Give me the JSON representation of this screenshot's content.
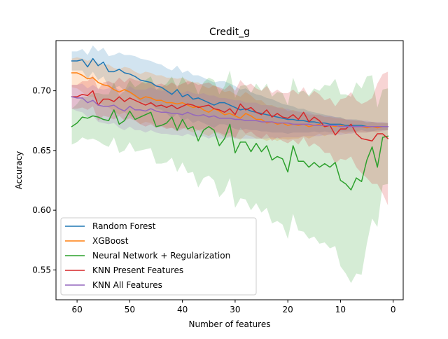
{
  "chart_data": {
    "type": "line",
    "title": "Credit_g",
    "xlabel": "Number of features",
    "ylabel": "Accuracy",
    "x_axis_inverted": true,
    "xlim": [
      64.0,
      -1.9
    ],
    "ylim": [
      0.525,
      0.742
    ],
    "xticks": [
      60,
      50,
      40,
      30,
      20,
      10,
      0
    ],
    "yticks": [
      0.55,
      0.6,
      0.65,
      0.7
    ],
    "ytick_labels": [
      "0.55",
      "0.60",
      "0.65",
      "0.70"
    ],
    "grid": false,
    "legend_position": "lower-left",
    "x": [
      61,
      60,
      59,
      58,
      57,
      56,
      55,
      54,
      53,
      52,
      51,
      50,
      49,
      48,
      47,
      46,
      45,
      44,
      43,
      42,
      41,
      40,
      39,
      38,
      37,
      36,
      35,
      34,
      33,
      32,
      31,
      30,
      29,
      28,
      27,
      26,
      25,
      24,
      23,
      22,
      21,
      20,
      19,
      18,
      17,
      16,
      15,
      14,
      13,
      12,
      11,
      10,
      9,
      8,
      7,
      6,
      5,
      4,
      3,
      2,
      1
    ],
    "series": [
      {
        "name": "Random Forest",
        "color": "#1f77b4",
        "values": [
          0.725,
          0.725,
          0.726,
          0.72,
          0.727,
          0.721,
          0.724,
          0.716,
          0.716,
          0.718,
          0.715,
          0.714,
          0.712,
          0.709,
          0.708,
          0.707,
          0.704,
          0.703,
          0.7,
          0.697,
          0.701,
          0.695,
          0.697,
          0.693,
          0.694,
          0.692,
          0.69,
          0.688,
          0.69,
          0.69,
          0.688,
          0.686,
          0.684,
          0.685,
          0.683,
          0.682,
          0.681,
          0.68,
          0.679,
          0.678,
          0.677,
          0.676,
          0.676,
          0.675,
          0.675,
          0.674,
          0.674,
          0.673,
          0.673,
          0.672,
          0.672,
          0.672,
          0.671,
          0.671,
          0.671,
          0.671,
          0.67,
          0.67,
          0.67,
          0.67,
          0.67
        ],
        "band_half_width": [
          0.008,
          0.008,
          0.009,
          0.01,
          0.011,
          0.012,
          0.012,
          0.013,
          0.014,
          0.014,
          0.015,
          0.016,
          0.017,
          0.018,
          0.018,
          0.018,
          0.019,
          0.019,
          0.019,
          0.02,
          0.02,
          0.02,
          0.02,
          0.02,
          0.019,
          0.019,
          0.019,
          0.019,
          0.018,
          0.018,
          0.018,
          0.018,
          0.017,
          0.017,
          0.016,
          0.015,
          0.015,
          0.014,
          0.014,
          0.013,
          0.012,
          0.012,
          0.011,
          0.01,
          0.01,
          0.009,
          0.008,
          0.008,
          0.007,
          0.007,
          0.006,
          0.006,
          0.005,
          0.005,
          0.005,
          0.004,
          0.004,
          0.004,
          0.003,
          0.003,
          0.003
        ]
      },
      {
        "name": "XGBoost",
        "color": "#ff7f0e",
        "values": [
          0.715,
          0.715,
          0.713,
          0.71,
          0.711,
          0.707,
          0.705,
          0.704,
          0.701,
          0.699,
          0.701,
          0.699,
          0.696,
          0.693,
          0.695,
          0.694,
          0.692,
          0.692,
          0.69,
          0.69,
          0.689,
          0.69,
          0.688,
          0.686,
          0.687,
          0.684,
          0.682,
          0.685,
          0.683,
          0.68,
          0.681,
          0.679,
          0.677,
          0.681,
          0.679,
          0.676,
          0.676,
          0.673,
          0.674,
          0.672,
          0.673,
          0.671,
          0.672,
          0.671,
          0.672,
          0.67,
          0.671,
          0.672,
          0.67,
          0.671,
          0.67,
          0.671,
          0.67,
          0.67,
          0.67,
          0.67,
          0.669,
          0.67,
          0.669,
          0.67,
          0.67
        ],
        "band_half_width": [
          0.012,
          0.013,
          0.014,
          0.015,
          0.016,
          0.016,
          0.017,
          0.018,
          0.018,
          0.019,
          0.019,
          0.02,
          0.02,
          0.021,
          0.021,
          0.021,
          0.021,
          0.021,
          0.021,
          0.021,
          0.021,
          0.021,
          0.021,
          0.021,
          0.02,
          0.02,
          0.02,
          0.02,
          0.019,
          0.019,
          0.019,
          0.018,
          0.018,
          0.018,
          0.017,
          0.016,
          0.016,
          0.015,
          0.014,
          0.014,
          0.013,
          0.012,
          0.012,
          0.011,
          0.01,
          0.01,
          0.009,
          0.008,
          0.008,
          0.007,
          0.007,
          0.006,
          0.006,
          0.005,
          0.005,
          0.005,
          0.004,
          0.004,
          0.004,
          0.003,
          0.003
        ]
      },
      {
        "name": "Neural Network + Regularization",
        "color": "#2ca02c",
        "values": [
          0.67,
          0.673,
          0.678,
          0.677,
          0.679,
          0.678,
          0.676,
          0.675,
          0.684,
          0.672,
          0.675,
          0.683,
          0.676,
          0.678,
          0.68,
          0.682,
          0.67,
          0.671,
          0.673,
          0.678,
          0.667,
          0.676,
          0.668,
          0.67,
          0.658,
          0.667,
          0.67,
          0.667,
          0.654,
          0.66,
          0.672,
          0.648,
          0.657,
          0.657,
          0.649,
          0.656,
          0.649,
          0.654,
          0.642,
          0.645,
          0.643,
          0.632,
          0.654,
          0.641,
          0.641,
          0.636,
          0.64,
          0.636,
          0.639,
          0.636,
          0.64,
          0.625,
          0.622,
          0.617,
          0.627,
          0.624,
          0.642,
          0.653,
          0.636,
          0.661,
          0.662
        ],
        "band_half_width": [
          0.015,
          0.016,
          0.017,
          0.018,
          0.019,
          0.02,
          0.021,
          0.022,
          0.023,
          0.024,
          0.025,
          0.026,
          0.027,
          0.028,
          0.029,
          0.03,
          0.031,
          0.032,
          0.033,
          0.034,
          0.035,
          0.036,
          0.037,
          0.038,
          0.039,
          0.04,
          0.041,
          0.042,
          0.043,
          0.044,
          0.045,
          0.046,
          0.047,
          0.048,
          0.049,
          0.05,
          0.051,
          0.052,
          0.053,
          0.054,
          0.055,
          0.056,
          0.057,
          0.058,
          0.059,
          0.06,
          0.062,
          0.064,
          0.066,
          0.068,
          0.07,
          0.072,
          0.075,
          0.078,
          0.08,
          0.078,
          0.07,
          0.06,
          0.05,
          0.04,
          0.04
        ]
      },
      {
        "name": "KNN Present Features",
        "color": "#d62728",
        "values": [
          0.695,
          0.695,
          0.697,
          0.696,
          0.7,
          0.688,
          0.693,
          0.693,
          0.691,
          0.695,
          0.691,
          0.694,
          0.692,
          0.69,
          0.688,
          0.69,
          0.687,
          0.688,
          0.686,
          0.688,
          0.685,
          0.687,
          0.689,
          0.688,
          0.686,
          0.687,
          0.688,
          0.685,
          0.684,
          0.682,
          0.685,
          0.68,
          0.689,
          0.684,
          0.686,
          0.682,
          0.68,
          0.684,
          0.678,
          0.681,
          0.678,
          0.677,
          0.68,
          0.676,
          0.682,
          0.674,
          0.678,
          0.675,
          0.67,
          0.671,
          0.663,
          0.668,
          0.668,
          0.672,
          0.664,
          0.66,
          0.659,
          0.658,
          0.664,
          0.664,
          0.66
        ],
        "band_half_width": [
          0.01,
          0.01,
          0.011,
          0.012,
          0.013,
          0.013,
          0.014,
          0.015,
          0.015,
          0.016,
          0.016,
          0.017,
          0.017,
          0.018,
          0.018,
          0.018,
          0.018,
          0.018,
          0.018,
          0.019,
          0.019,
          0.019,
          0.019,
          0.019,
          0.019,
          0.019,
          0.019,
          0.019,
          0.019,
          0.019,
          0.02,
          0.02,
          0.02,
          0.02,
          0.02,
          0.02,
          0.02,
          0.02,
          0.02,
          0.02,
          0.02,
          0.021,
          0.021,
          0.021,
          0.021,
          0.021,
          0.022,
          0.022,
          0.022,
          0.023,
          0.024,
          0.025,
          0.026,
          0.027,
          0.028,
          0.029,
          0.032,
          0.036,
          0.042,
          0.05,
          0.056
        ]
      },
      {
        "name": "KNN All Features",
        "color": "#9467bd",
        "values": [
          0.695,
          0.694,
          0.694,
          0.69,
          0.692,
          0.688,
          0.687,
          0.687,
          0.688,
          0.685,
          0.683,
          0.687,
          0.684,
          0.684,
          0.683,
          0.685,
          0.683,
          0.682,
          0.682,
          0.681,
          0.681,
          0.68,
          0.682,
          0.68,
          0.679,
          0.68,
          0.678,
          0.679,
          0.677,
          0.677,
          0.677,
          0.676,
          0.676,
          0.675,
          0.675,
          0.675,
          0.674,
          0.674,
          0.674,
          0.673,
          0.673,
          0.673,
          0.672,
          0.672,
          0.672,
          0.672,
          0.671,
          0.671,
          0.671,
          0.671,
          0.671,
          0.67,
          0.67,
          0.67,
          0.67,
          0.67,
          0.67,
          0.67,
          0.67,
          0.67,
          0.67
        ],
        "band_half_width": [
          0.01,
          0.011,
          0.012,
          0.012,
          0.013,
          0.014,
          0.014,
          0.015,
          0.015,
          0.016,
          0.016,
          0.017,
          0.017,
          0.017,
          0.018,
          0.018,
          0.018,
          0.018,
          0.018,
          0.018,
          0.018,
          0.018,
          0.018,
          0.018,
          0.018,
          0.018,
          0.018,
          0.017,
          0.017,
          0.017,
          0.016,
          0.016,
          0.016,
          0.015,
          0.015,
          0.015,
          0.014,
          0.014,
          0.013,
          0.013,
          0.012,
          0.012,
          0.011,
          0.011,
          0.01,
          0.01,
          0.009,
          0.009,
          0.008,
          0.008,
          0.007,
          0.007,
          0.006,
          0.006,
          0.005,
          0.005,
          0.005,
          0.004,
          0.004,
          0.004,
          0.003
        ]
      }
    ]
  }
}
